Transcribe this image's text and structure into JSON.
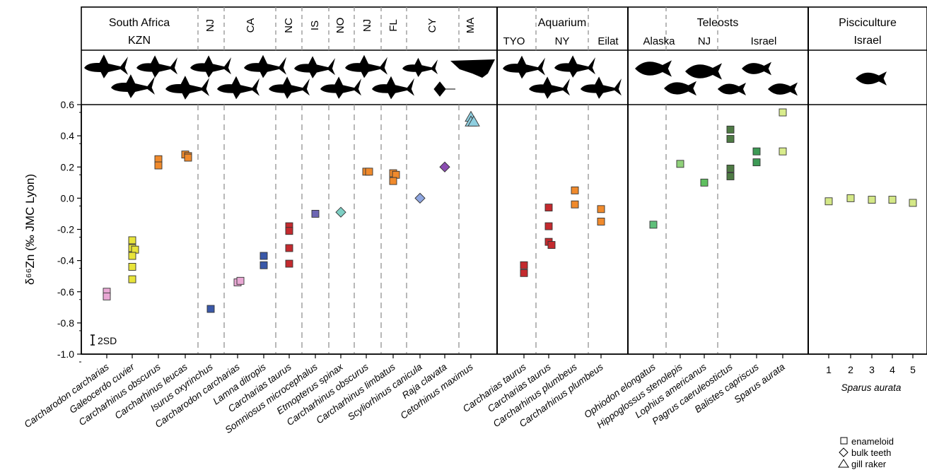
{
  "chart_data": {
    "type": "scatter",
    "ylabel": "δ⁶⁶Zn (‰ JMC Lyon)",
    "ylim": [
      -1.0,
      0.6
    ],
    "yticks": [
      "0.6",
      "0.4",
      "0.2",
      "0.0",
      "-0.2",
      "-0.4",
      "-0.6",
      "-0.8",
      "-1.0"
    ],
    "error_bar_label": "2SD",
    "panels": [
      {
        "title": "South Africa\nKZN",
        "locations": [
          "NJ",
          "CA",
          "NC",
          "IS",
          "NO",
          "NJ",
          "FL",
          "CY",
          "MA"
        ],
        "species": [
          {
            "name": "Carcharodon carcharias",
            "color": "#e9a8d4",
            "marker": "square",
            "values": [
              -0.6,
              -0.63
            ]
          },
          {
            "name": "Galeocerdo cuvier",
            "color": "#e8e43a",
            "marker": "square",
            "values": [
              -0.27,
              -0.32,
              -0.33,
              -0.37,
              -0.44,
              -0.52
            ]
          },
          {
            "name": "Carcharhinus obscurus",
            "color": "#f08a2c",
            "marker": "square",
            "values": [
              0.25,
              0.21
            ]
          },
          {
            "name": "Carcharhinus leucas",
            "color": "#f08a2c",
            "marker": "square",
            "values": [
              0.28,
              0.27,
              0.26
            ]
          },
          {
            "name": "Isurus oxyrinchus",
            "color": "#3a58a8",
            "marker": "square",
            "values": [
              -0.71
            ]
          },
          {
            "name": "Carcharodon carcharias",
            "color": "#e9a8d4",
            "marker": "square",
            "values": [
              -0.54,
              -0.53
            ]
          },
          {
            "name": "Lamna ditropis",
            "color": "#3a58a8",
            "marker": "square",
            "values": [
              -0.37,
              -0.43
            ]
          },
          {
            "name": "Carcharias taurus",
            "color": "#c42a2e",
            "marker": "square",
            "values": [
              -0.18,
              -0.21,
              -0.32,
              -0.42
            ]
          },
          {
            "name": "Somniosus microcephalus",
            "color": "#6d66b3",
            "marker": "square",
            "values": [
              -0.1
            ]
          },
          {
            "name": "Etmopterus spinax",
            "color": "#7ecfc4",
            "marker": "diamond",
            "values": [
              -0.09
            ]
          },
          {
            "name": "Carcharhinus obscurus",
            "color": "#f08a2c",
            "marker": "square",
            "values": [
              0.17,
              0.17
            ]
          },
          {
            "name": "Carcharhinus limbatus",
            "color": "#f08a2c",
            "marker": "square",
            "values": [
              0.16,
              0.15,
              0.11
            ]
          },
          {
            "name": "Scyliorhinus canicula",
            "color": "#8ea6e0",
            "marker": "diamond",
            "values": [
              0.0
            ]
          },
          {
            "name": "Raja clavata",
            "color": "#8a4db0",
            "marker": "diamond",
            "values": [
              0.2
            ]
          },
          {
            "name": "Cetorhinus maximus",
            "color": "#8fcfe0",
            "marker": "triangle",
            "values": [
              0.52,
              0.49,
              0.49
            ]
          }
        ]
      },
      {
        "title": "Aquarium",
        "locations": [
          "TYO",
          "NY",
          "Eilat"
        ],
        "species": [
          {
            "name": "Carcharias taurus",
            "color": "#c42a2e",
            "marker": "square",
            "values": [
              -0.43,
              -0.48
            ]
          },
          {
            "name": "Carcharias taurus",
            "color": "#c42a2e",
            "marker": "square",
            "values": [
              -0.06,
              -0.18,
              -0.28,
              -0.3
            ]
          },
          {
            "name": "Carcharhinus plumbeus",
            "color": "#f08a2c",
            "marker": "square",
            "values": [
              0.05,
              -0.04
            ]
          },
          {
            "name": "Carcharhinus plumbeus",
            "color": "#f08a2c",
            "marker": "square",
            "values": [
              -0.07,
              -0.15
            ]
          }
        ]
      },
      {
        "title": "Teleosts",
        "locations": [
          "Alaska",
          "NJ",
          "Israel"
        ],
        "species": [
          {
            "name": "Ophiodon elongatus",
            "color": "#5fbf7a",
            "marker": "square",
            "values": [
              -0.17
            ]
          },
          {
            "name": "Hippoglossus stenolepis",
            "color": "#8fd17a",
            "marker": "square",
            "values": [
              0.22
            ]
          },
          {
            "name": "Lophius americanus",
            "color": "#5fbf5f",
            "marker": "square",
            "values": [
              0.1
            ]
          },
          {
            "name": "Pagrus caeruleostictus",
            "color": "#4e7a44",
            "marker": "square",
            "values": [
              0.44,
              0.38,
              0.19,
              0.14
            ]
          },
          {
            "name": "Balistes capriscus",
            "color": "#3d9a55",
            "marker": "square",
            "values": [
              0.3,
              0.23
            ]
          },
          {
            "name": "Sparus aurata",
            "color": "#d9ec8c",
            "marker": "square",
            "values": [
              0.55,
              0.3
            ]
          }
        ]
      },
      {
        "title": "Pisciculture\nIsrael",
        "locations": [],
        "xlabel": "Sparus aurata",
        "categories": [
          "1",
          "2",
          "3",
          "4",
          "5"
        ],
        "species": [
          {
            "name": "1",
            "color": "#d4e887",
            "marker": "square",
            "values": [
              -0.02
            ]
          },
          {
            "name": "2",
            "color": "#d4e887",
            "marker": "square",
            "values": [
              0.0
            ]
          },
          {
            "name": "3",
            "color": "#d4e887",
            "marker": "square",
            "values": [
              -0.01
            ]
          },
          {
            "name": "4",
            "color": "#d4e887",
            "marker": "square",
            "values": [
              -0.01
            ]
          },
          {
            "name": "5",
            "color": "#d4e887",
            "marker": "square",
            "values": [
              -0.03
            ]
          }
        ]
      }
    ],
    "legend": [
      {
        "marker": "square",
        "label": "enameloid"
      },
      {
        "marker": "diamond",
        "label": "bulk teeth"
      },
      {
        "marker": "triangle",
        "label": "gill raker"
      }
    ],
    "legend_position": "bottom-right",
    "grid": false
  }
}
